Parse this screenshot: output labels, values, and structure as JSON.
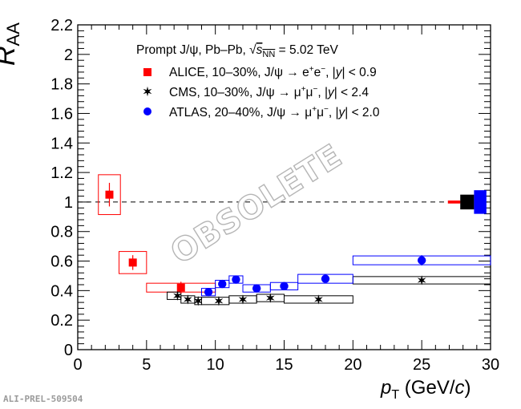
{
  "chart_data": {
    "type": "scatter",
    "ylabel_main": "R",
    "ylabel_sub": "AA",
    "xlabel_italic": "p",
    "xlabel_sub": "T",
    "xlabel_units_pre": " (GeV/",
    "xlabel_units_c": "c",
    "xlabel_units_post": ")",
    "xlim": [
      0,
      30
    ],
    "ylim": [
      0,
      2.2
    ],
    "x_ticks": [
      0,
      5,
      10,
      15,
      20,
      25,
      30
    ],
    "y_ticks": [
      0,
      0.2,
      0.4,
      0.6,
      0.8,
      1,
      1.2,
      1.4,
      1.6,
      1.8,
      2,
      2.2
    ],
    "reference_line": 1,
    "legend_header": {
      "pre": "Prompt J/ψ, Pb–Pb, ",
      "sqrt": "√",
      "s": "s",
      "nn": "NN",
      "post": " = 5.02 TeV"
    },
    "series": [
      {
        "name": "ALICE, 10–30%, J/ψ → e⁺e⁻, |y| < 0.9",
        "legend_parts": [
          "ALICE, 10–30%, J/ψ → e",
          "+",
          "e",
          "−",
          ", |",
          "y",
          "| < 0.9"
        ],
        "color": "#ff0000",
        "marker": "square",
        "points": [
          {
            "x": 2.3,
            "y": 1.05,
            "err": 0.08,
            "syst": 0.135,
            "xlo": 1.5,
            "xhi": 3.1
          },
          {
            "x": 4.0,
            "y": 0.59,
            "err": 0.05,
            "syst": 0.075,
            "xlo": 3.0,
            "xhi": 5.0
          },
          {
            "x": 7.5,
            "y": 0.42,
            "err": 0.04,
            "syst": 0.03,
            "xlo": 5.0,
            "xhi": 10.0
          }
        ],
        "global_unc": 0.01
      },
      {
        "name": "CMS, 10–30%, J/ψ → μ⁺μ⁻, |y| < 2.4",
        "legend_parts": [
          "CMS, 10–30%, J/ψ → μ",
          "+",
          "μ",
          "−",
          ", |",
          "y",
          "| < 2.4"
        ],
        "color": "#000000",
        "marker": "star",
        "points": [
          {
            "x": 7.25,
            "y": 0.365,
            "syst": 0.025,
            "xlo": 6.5,
            "xhi": 7.5
          },
          {
            "x": 8.0,
            "y": 0.34,
            "syst": 0.025,
            "xlo": 7.5,
            "xhi": 8.5
          },
          {
            "x": 8.75,
            "y": 0.33,
            "syst": 0.025,
            "xlo": 8.5,
            "xhi": 9.0
          },
          {
            "x": 10.25,
            "y": 0.33,
            "syst": 0.025,
            "xlo": 9.0,
            "xhi": 11.0
          },
          {
            "x": 12.0,
            "y": 0.34,
            "syst": 0.025,
            "xlo": 11.0,
            "xhi": 13.0
          },
          {
            "x": 14.0,
            "y": 0.35,
            "syst": 0.025,
            "xlo": 13.0,
            "xhi": 15.0
          },
          {
            "x": 17.5,
            "y": 0.34,
            "syst": 0.025,
            "xlo": 15.0,
            "xhi": 20.0
          },
          {
            "x": 25.0,
            "y": 0.47,
            "syst": 0.025,
            "xlo": 20.0,
            "xhi": 30.0
          }
        ],
        "global_unc": 0.05
      },
      {
        "name": "ATLAS, 20–40%, J/ψ → μ⁺μ⁻, |y| < 2.0",
        "legend_parts": [
          "ATLAS, 20–40%, J/ψ → μ",
          "+",
          "μ",
          "−",
          ", |",
          "y",
          "| < 2.0"
        ],
        "color": "#0000ff",
        "marker": "circle",
        "points": [
          {
            "x": 9.5,
            "y": 0.39,
            "err": 0.015,
            "syst": 0.025,
            "xlo": 9.0,
            "xhi": 10.0
          },
          {
            "x": 10.5,
            "y": 0.445,
            "err": 0.015,
            "syst": 0.025,
            "xlo": 10.0,
            "xhi": 11.0
          },
          {
            "x": 11.5,
            "y": 0.475,
            "err": 0.015,
            "syst": 0.025,
            "xlo": 11.0,
            "xhi": 12.0
          },
          {
            "x": 13.0,
            "y": 0.415,
            "err": 0.015,
            "syst": 0.025,
            "xlo": 12.0,
            "xhi": 14.0
          },
          {
            "x": 15.0,
            "y": 0.43,
            "err": 0.015,
            "syst": 0.025,
            "xlo": 14.0,
            "xhi": 16.0
          },
          {
            "x": 18.0,
            "y": 0.48,
            "err": 0.015,
            "syst": 0.03,
            "xlo": 16.0,
            "xhi": 20.0
          },
          {
            "x": 25.0,
            "y": 0.605,
            "err": 0.035,
            "syst": 0.03,
            "xlo": 20.0,
            "xhi": 30.0
          }
        ],
        "global_unc": 0.08
      }
    ]
  },
  "watermark": "OBSOLETE",
  "preliminary_tag": "ALI-PREL-509504"
}
